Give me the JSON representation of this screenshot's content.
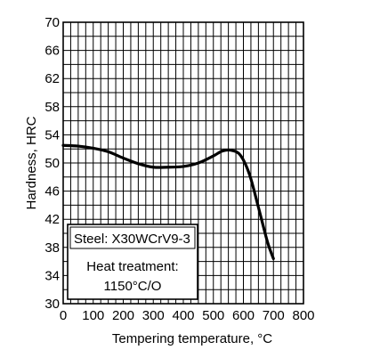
{
  "chart_data": {
    "type": "line",
    "title": "",
    "xlabel": "Tempering temperature, °C",
    "ylabel": "Hardness, HRC",
    "xlim": [
      0,
      800
    ],
    "ylim": [
      30,
      70
    ],
    "x_ticks": [
      0,
      100,
      200,
      300,
      400,
      500,
      600,
      700,
      800
    ],
    "y_ticks": [
      30,
      34,
      38,
      42,
      46,
      50,
      54,
      58,
      62,
      66,
      70
    ],
    "grid": true,
    "series": [
      {
        "x": [
          0,
          50,
          100,
          150,
          200,
          250,
          300,
          350,
          400,
          450,
          500,
          530,
          560,
          590,
          620,
          650,
          680,
          700
        ],
        "y": [
          52.5,
          52.4,
          52.1,
          51.6,
          50.7,
          49.9,
          49.4,
          49.4,
          49.5,
          50.0,
          51.0,
          51.7,
          51.8,
          51.1,
          48.4,
          43.7,
          38.8,
          36.4
        ]
      }
    ],
    "annotation": {
      "line1": "Steel: X30WCrV9-3",
      "line2": "Heat treatment:",
      "line3": "1150°C/O"
    }
  }
}
